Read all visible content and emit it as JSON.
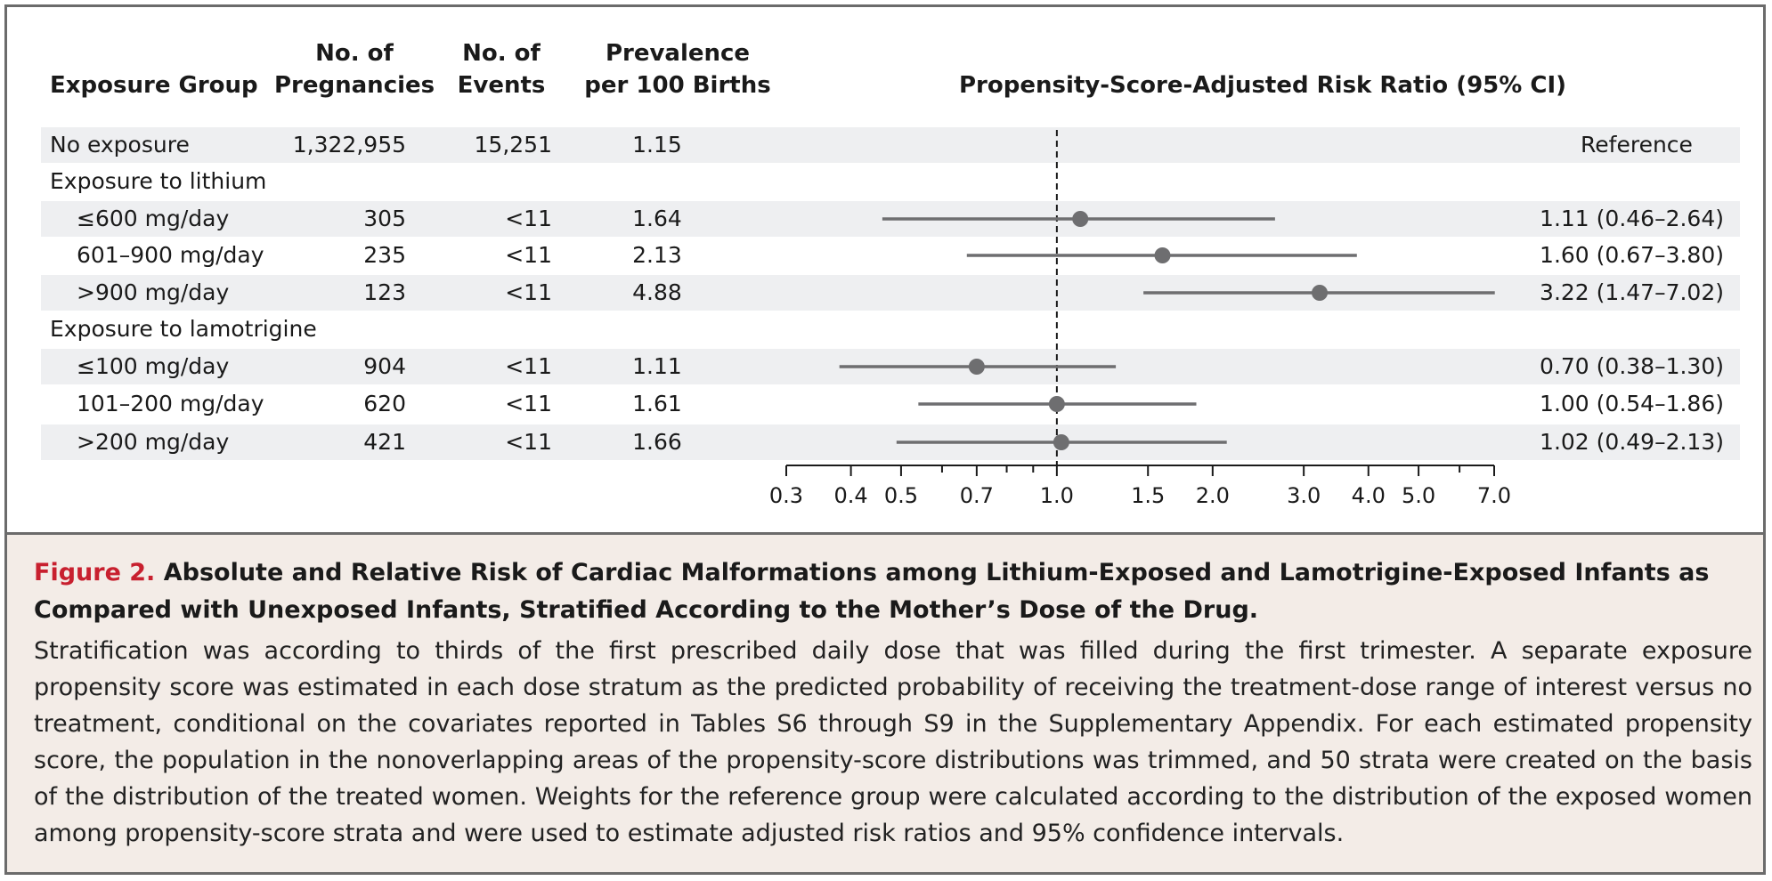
{
  "headers": {
    "group": "Exposure Group",
    "pregnancies": [
      "No. of",
      "Pregnancies"
    ],
    "events": [
      "No. of",
      "Events"
    ],
    "prevalence": [
      "Prevalence",
      "per 100 Births"
    ],
    "risk_ratio": "Propensity-Score-Adjusted Risk Ratio (95% CI)"
  },
  "rows": [
    {
      "label": "No exposure",
      "pregnancies": "1,322,955",
      "events": "15,251",
      "prevalence": "1.15",
      "ci_text": "Reference"
    },
    {
      "label": "Exposure to lithium"
    },
    {
      "label": "≤600 mg/day",
      "pregnancies": "305",
      "events": "<11",
      "prevalence": "1.64",
      "ci_text": "1.11 (0.46–2.64)"
    },
    {
      "label": "601–900 mg/day",
      "pregnancies": "235",
      "events": "<11",
      "prevalence": "2.13",
      "ci_text": "1.60 (0.67–3.80)"
    },
    {
      "label": ">900 mg/day",
      "pregnancies": "123",
      "events": "<11",
      "prevalence": "4.88",
      "ci_text": "3.22 (1.47–7.02)"
    },
    {
      "label": "Exposure to lamotrigine"
    },
    {
      "label": "≤100 mg/day",
      "pregnancies": "904",
      "events": "<11",
      "prevalence": "1.11",
      "ci_text": "0.70 (0.38–1.30)"
    },
    {
      "label": "101–200 mg/day",
      "pregnancies": "620",
      "events": "<11",
      "prevalence": "1.61",
      "ci_text": "1.00 (0.54–1.86)"
    },
    {
      "label": ">200 mg/day",
      "pregnancies": "421",
      "events": "<11",
      "prevalence": "1.66",
      "ci_text": "1.02 (0.49–2.13)"
    }
  ],
  "chart_data": {
    "type": "scatter",
    "title": "Propensity-Score-Adjusted Risk Ratio (95% CI)",
    "xscale": "log",
    "xlim": [
      0.3,
      7.0
    ],
    "reference_line": 1.0,
    "x_ticks": [
      0.3,
      0.4,
      0.5,
      0.7,
      1.0,
      1.5,
      2.0,
      3.0,
      4.0,
      5.0,
      7.0
    ],
    "x_tick_labels": [
      "0.3",
      "0.4",
      "0.5",
      "0.7",
      "1.0",
      "1.5",
      "2.0",
      "3.0",
      "4.0",
      "5.0",
      "7.0"
    ],
    "x_minor_ticks": [
      0.6,
      0.8,
      0.9,
      6.0
    ],
    "series": [
      {
        "name": "≤600 mg/day",
        "estimate": 1.11,
        "lower": 0.46,
        "upper": 2.64
      },
      {
        "name": "601–900 mg/day",
        "estimate": 1.6,
        "lower": 0.67,
        "upper": 3.8
      },
      {
        "name": ">900 mg/day",
        "estimate": 3.22,
        "lower": 1.47,
        "upper": 7.02
      },
      {
        "name": "≤100 mg/day",
        "estimate": 0.7,
        "lower": 0.38,
        "upper": 1.3
      },
      {
        "name": "101–200 mg/day",
        "estimate": 1.0,
        "lower": 0.54,
        "upper": 1.86
      },
      {
        "name": ">200 mg/day",
        "estimate": 1.02,
        "lower": 0.49,
        "upper": 2.13
      }
    ],
    "colors": {
      "marker": "#6e6e70",
      "line": "#6e6e70",
      "axis": "#1a1a1a"
    }
  },
  "caption": {
    "figure_label": "Figure 2.",
    "title": "Absolute and Relative Risk of Cardiac Malformations among Lithium-Exposed and Lamotrigine-Exposed Infants as Compared with Unexposed Infants, Stratified According to the Mother’s Dose of the Drug.",
    "body": "Stratification was according to thirds of the first prescribed daily dose that was filled during the first trimester. A separate exposure propensity score was estimated in each dose stratum as the predicted probability of receiving the treatment-dose range of interest versus no treatment, conditional on the covariates reported in Tables S6 through S9 in the Supplementary Appendix. For each estimated propensity score, the population in the nonoverlapping areas of the propensity-score distributions was trimmed, and 50 strata were created on the basis of the distribution of the treated women. Weights for the reference group were calculated according to the distribution of the exposed women among propensity-score strata and were used to estimate adjusted risk ratios and 95% confidence intervals.",
    "title_color": "#c8202f",
    "background": "#f3ece7"
  }
}
